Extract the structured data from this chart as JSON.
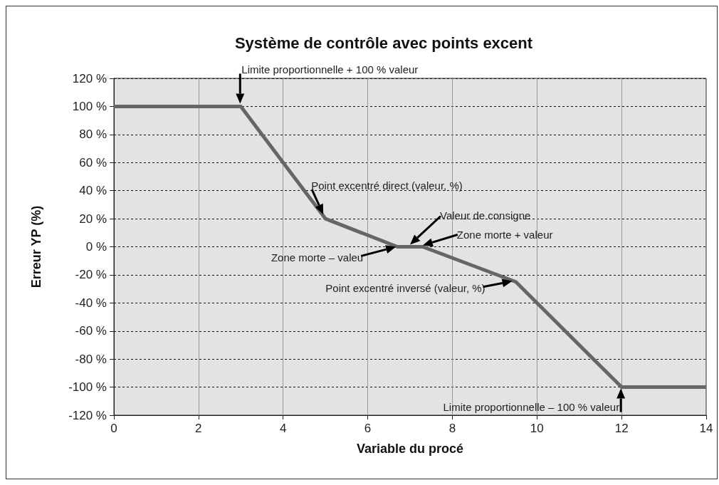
{
  "chart_data": {
    "type": "line",
    "title": "Système de contrôle avec points excent",
    "xlabel": "Variable du procé",
    "ylabel": "Erreur YP (%)",
    "x": [
      0,
      3,
      5,
      6.7,
      7.3,
      9.5,
      12,
      14
    ],
    "series": [
      {
        "color": "#666666",
        "values": [
          100,
          100,
          20,
          0,
          0,
          -25,
          -100,
          -100
        ]
      }
    ],
    "xlim": [
      0,
      14
    ],
    "xticks": [
      0,
      2,
      4,
      6,
      8,
      10,
      12,
      14
    ],
    "ylim": [
      -120,
      120
    ],
    "yticks": [
      {
        "value": -120,
        "label": "-120 %"
      },
      {
        "value": -100,
        "label": "-100 %"
      },
      {
        "value": -80,
        "label": "-80 %"
      },
      {
        "value": -60,
        "label": "-60 %"
      },
      {
        "value": -40,
        "label": "-40 %"
      },
      {
        "value": -20,
        "label": "-20 %"
      },
      {
        "value": 0,
        "label": "0 %"
      },
      {
        "value": 20,
        "label": "20 %"
      },
      {
        "value": 40,
        "label": "40 %"
      },
      {
        "value": 60,
        "label": "60 %"
      },
      {
        "value": 80,
        "label": "80 %"
      },
      {
        "value": 100,
        "label": "100 %"
      },
      {
        "value": 120,
        "label": "120 %"
      }
    ],
    "grid": true,
    "marker": "none",
    "line_style": "solid",
    "annotations": [
      {
        "text": "Limite proportionnelle + 100 % valeur",
        "x": 3,
        "y": 100
      },
      {
        "text": "Point excentré direct (valeur, %)",
        "x": 5,
        "y": 20
      },
      "Valeur de consigne",
      "Zone morte + valeur",
      "Zone morte – valeu",
      {
        "text": "Point excentré inversé (valeur, %)",
        "x": 9.5,
        "y": -25
      },
      {
        "text": "Limite proportionnelle – 100 % valeur",
        "x": 12,
        "y": -100
      }
    ]
  }
}
